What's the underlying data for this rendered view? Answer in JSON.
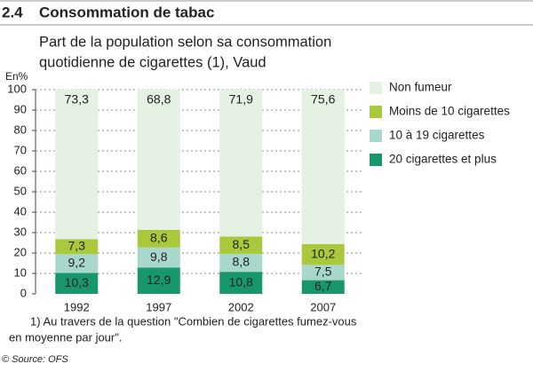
{
  "chart_data": {
    "type": "stacked-bar",
    "number": "2.4",
    "title": "Consommation de tabac",
    "subtitle": [
      "Part de la population selon sa consommation",
      "quotidienne de cigarettes (1), Vaud"
    ],
    "y_unit": "En%",
    "categories": [
      "1992",
      "1997",
      "2002",
      "2007"
    ],
    "series": [
      {
        "name": "20 cigarettes et plus",
        "color": "#17976b",
        "values": [
          10.3,
          12.9,
          10.8,
          6.7
        ],
        "value_labels": [
          "10,3",
          "12,9",
          "10,8",
          "6,7"
        ]
      },
      {
        "name": "10 à 19 cigarettes",
        "color": "#a7d8cb",
        "values": [
          9.2,
          9.8,
          8.8,
          7.5
        ],
        "value_labels": [
          "9,2",
          "9,8",
          "8,8",
          "7,5"
        ]
      },
      {
        "name": "Moins de 10 cigarettes",
        "color": "#a9c83b",
        "values": [
          7.3,
          8.6,
          8.5,
          10.2
        ],
        "value_labels": [
          "7,3",
          "8,6",
          "8,5",
          "10,2"
        ]
      },
      {
        "name": "Non fumeur",
        "color": "#e4f1e3",
        "values": [
          73.3,
          68.8,
          71.9,
          75.6
        ],
        "value_labels": [
          "73,3",
          "68,8",
          "71,9",
          "75,6"
        ]
      }
    ],
    "ylim": [
      0,
      100
    ],
    "yticks": [
      0,
      10,
      20,
      30,
      40,
      50,
      60,
      70,
      80,
      90,
      100
    ],
    "grid": true,
    "footnote": [
      "1) Au travers de la question \"Combien de cigarettes fumez-vous",
      "en moyenne  par jour\"."
    ],
    "source": "© Source: OFS"
  }
}
